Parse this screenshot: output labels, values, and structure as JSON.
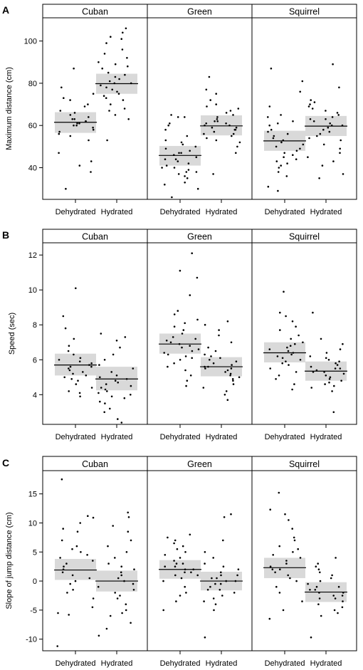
{
  "panels": [
    {
      "letter": "A",
      "ylabel": "Maximum distance (cm)",
      "ylim": [
        25,
        111
      ],
      "ticks": [
        40,
        60,
        80,
        100
      ],
      "facets": [
        "Cuban",
        "Green",
        "Squirrel"
      ],
      "groups": [
        "Dehydrated",
        "Hydrated"
      ],
      "means": [
        [
          61.5,
          79.8
        ],
        [
          45.8,
          59.8
        ],
        [
          52.7,
          59.7
        ]
      ],
      "ci": [
        [
          [
            56.5,
            66.3
          ],
          [
            75.0,
            84.5
          ]
        ],
        [
          [
            41.0,
            50.3
          ],
          [
            55.3,
            64.8
          ]
        ],
        [
          [
            48.0,
            57.5
          ],
          [
            55.0,
            64.5
          ]
        ]
      ],
      "points": [
        [
          [
            30,
            38,
            41,
            43,
            47,
            53,
            55,
            56,
            57,
            58,
            59,
            60,
            60,
            61,
            61,
            62,
            62,
            63,
            63,
            64,
            65,
            66,
            67,
            69,
            70,
            72,
            73,
            75,
            78,
            87
          ],
          [
            53,
            63,
            65,
            67,
            68,
            70,
            72,
            73,
            74,
            75,
            76,
            77,
            78,
            79,
            80,
            80,
            81,
            82,
            83,
            84,
            85,
            87,
            88,
            89,
            90,
            92,
            94,
            96,
            99,
            101,
            102,
            104,
            106
          ]
        ],
        [
          [
            26,
            30,
            32,
            33,
            35,
            36,
            37,
            38,
            38,
            39,
            40,
            40,
            41,
            42,
            43,
            44,
            44,
            45,
            46,
            47,
            47,
            48,
            49,
            50,
            51,
            52,
            53,
            55,
            58,
            60,
            61,
            64,
            64,
            65
          ],
          [
            37,
            47,
            50,
            52,
            53,
            54,
            55,
            56,
            56,
            57,
            58,
            58,
            59,
            59,
            60,
            60,
            61,
            61,
            62,
            62,
            63,
            64,
            65,
            66,
            67,
            68,
            69,
            70,
            72,
            75,
            77,
            83
          ]
        ],
        [
          [
            29,
            31,
            36,
            38,
            40,
            41,
            42,
            43,
            44,
            45,
            46,
            47,
            48,
            49,
            50,
            51,
            52,
            53,
            54,
            55,
            56,
            57,
            58,
            60,
            61,
            62,
            64,
            65,
            69,
            76,
            81,
            87
          ],
          [
            35,
            37,
            41,
            43,
            45,
            47,
            49,
            51,
            53,
            54,
            55,
            56,
            57,
            58,
            59,
            60,
            60,
            61,
            62,
            63,
            63,
            64,
            65,
            66,
            67,
            68,
            69,
            70,
            71,
            72,
            78,
            89
          ]
        ]
      ]
    },
    {
      "letter": "B",
      "ylabel": "Speed (sec)",
      "ylim": [
        2.3,
        12.7
      ],
      "ticks": [
        4,
        6,
        8,
        10,
        12
      ],
      "facets": [
        "Cuban",
        "Green",
        "Squirrel"
      ],
      "groups": [
        "Dehydrated",
        "Hydrated"
      ],
      "means": [
        [
          5.7,
          4.9
        ],
        [
          6.9,
          5.6
        ],
        [
          6.4,
          5.35
        ]
      ],
      "ci": [
        [
          [
            5.1,
            6.35
          ],
          [
            4.25,
            5.6
          ]
        ],
        [
          [
            6.35,
            7.5
          ],
          [
            5.05,
            6.15
          ]
        ],
        [
          [
            5.85,
            7.0
          ],
          [
            4.8,
            5.9
          ]
        ]
      ],
      "points": [
        [
          [
            3.9,
            4.1,
            4.2,
            4.4,
            4.6,
            4.8,
            4.9,
            5.0,
            5.1,
            5.2,
            5.3,
            5.4,
            5.5,
            5.6,
            5.6,
            5.7,
            5.8,
            5.9,
            6.0,
            6.1,
            6.3,
            6.5,
            6.8,
            7.2,
            7.8,
            8.5,
            10.1
          ],
          [
            2.4,
            2.6,
            3.0,
            3.2,
            3.5,
            3.6,
            3.8,
            3.9,
            4.0,
            4.1,
            4.2,
            4.3,
            4.4,
            4.5,
            4.6,
            4.7,
            4.8,
            4.9,
            5.0,
            5.1,
            5.3,
            5.5,
            5.7,
            6.0,
            6.3,
            6.7,
            7.1,
            7.3,
            7.5
          ]
        ],
        [
          [
            4.5,
            4.8,
            5.1,
            5.4,
            5.6,
            5.8,
            6.0,
            6.1,
            6.2,
            6.3,
            6.4,
            6.5,
            6.6,
            6.7,
            6.8,
            6.9,
            7.0,
            7.1,
            7.2,
            7.3,
            7.5,
            7.7,
            7.9,
            8.1,
            8.3,
            8.6,
            8.8,
            9.7,
            10.7,
            11.1,
            12.1
          ],
          [
            3.7,
            4.0,
            4.2,
            4.4,
            4.6,
            4.8,
            4.9,
            5.0,
            5.1,
            5.2,
            5.3,
            5.4,
            5.5,
            5.5,
            5.6,
            5.6,
            5.7,
            5.8,
            5.9,
            6.0,
            6.1,
            6.2,
            6.3,
            6.5,
            6.7,
            7.0,
            7.4,
            7.7,
            8.0,
            8.2
          ]
        ],
        [
          [
            4.3,
            4.6,
            4.9,
            5.1,
            5.3,
            5.5,
            5.7,
            5.8,
            5.9,
            6.0,
            6.1,
            6.2,
            6.3,
            6.4,
            6.5,
            6.6,
            6.7,
            6.8,
            6.9,
            7.0,
            7.2,
            7.4,
            7.7,
            7.9,
            8.2,
            8.5,
            8.7,
            9.9
          ],
          [
            3.0,
            4.2,
            4.4,
            4.5,
            4.6,
            4.7,
            4.8,
            4.9,
            5.0,
            5.1,
            5.2,
            5.3,
            5.3,
            5.4,
            5.5,
            5.5,
            5.6,
            5.7,
            5.8,
            5.9,
            6.0,
            6.1,
            6.2,
            6.4,
            6.6,
            6.9,
            7.2,
            8.7
          ]
        ]
      ]
    },
    {
      "letter": "C",
      "ylabel": "Slope of jump distance (cm)",
      "ylim": [
        -12,
        19
      ],
      "ticks": [
        -10,
        -5,
        0,
        5,
        10,
        15
      ],
      "facets": [
        "Cuban",
        "Green",
        "Squirrel"
      ],
      "groups": [
        "Dehydrated",
        "Hydrated"
      ],
      "means": [
        [
          1.9,
          0.0
        ],
        [
          2.0,
          0.0
        ],
        [
          2.3,
          -1.9
        ]
      ],
      "ci": [
        [
          [
            0.2,
            3.8
          ],
          [
            -1.8,
            1.8
          ]
        ],
        [
          [
            0.4,
            3.6
          ],
          [
            -1.6,
            1.6
          ]
        ],
        [
          [
            0.5,
            4.0
          ],
          [
            -3.6,
            -0.2
          ]
        ]
      ],
      "points": [
        [
          [
            -11.2,
            -5.8,
            -5.5,
            -4.5,
            -3.0,
            -2.0,
            -1.5,
            -0.5,
            0.0,
            0.5,
            1.0,
            1.5,
            2.0,
            2.5,
            3.0,
            3.5,
            4.0,
            4.5,
            5.0,
            5.5,
            6.0,
            7.0,
            8.5,
            9.0,
            10.0,
            10.9,
            11.2,
            17.5
          ],
          [
            -9.4,
            -8.2,
            -7.2,
            -6.0,
            -5.5,
            -5.0,
            -4.0,
            -3.0,
            -2.5,
            -2.0,
            -1.5,
            -1.0,
            -0.5,
            0.0,
            0.5,
            1.0,
            1.5,
            2.0,
            2.5,
            3.0,
            4.0,
            5.0,
            6.0,
            7.0,
            8.5,
            9.5,
            11.0,
            11.8
          ]
        ],
        [
          [
            -5.0,
            -3.5,
            -2.5,
            -2.0,
            -1.0,
            0.0,
            0.5,
            1.0,
            1.0,
            1.5,
            1.5,
            2.0,
            2.0,
            2.5,
            2.5,
            3.0,
            3.0,
            3.5,
            4.0,
            4.5,
            5.0,
            5.5,
            6.0,
            6.5,
            7.0,
            7.5,
            8.0
          ],
          [
            -9.7,
            -5.0,
            -4.0,
            -3.5,
            -3.0,
            -2.5,
            -2.0,
            -1.5,
            -1.5,
            -1.0,
            -0.5,
            -0.5,
            0.0,
            0.0,
            0.5,
            0.5,
            1.0,
            1.0,
            1.5,
            2.0,
            2.5,
            3.0,
            4.0,
            5.0,
            7.0,
            11.0,
            11.5
          ]
        ],
        [
          [
            -6.5,
            -5.0,
            -3.5,
            -2.0,
            -1.0,
            0.0,
            0.5,
            1.0,
            1.5,
            2.0,
            2.0,
            2.5,
            3.0,
            3.5,
            4.0,
            4.5,
            5.0,
            5.5,
            6.0,
            7.0,
            7.5,
            9.0,
            10.5,
            11.5,
            12.3,
            15.2
          ],
          [
            -9.7,
            -6.0,
            -5.5,
            -5.0,
            -4.5,
            -4.0,
            -3.5,
            -3.0,
            -3.0,
            -2.5,
            -2.5,
            -2.0,
            -2.0,
            -1.5,
            -1.5,
            -1.0,
            -1.0,
            -0.5,
            0.0,
            0.5,
            1.0,
            1.5,
            2.0,
            2.5,
            3.0,
            4.0
          ]
        ]
      ]
    }
  ],
  "colors": {
    "band": "#d9d9d9",
    "ink": "#000000"
  }
}
